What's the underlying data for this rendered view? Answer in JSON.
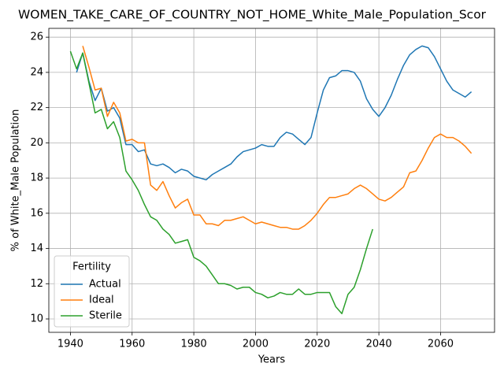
{
  "chart_data": {
    "type": "line",
    "title": "WOMEN_TAKE_CARE_OF_COUNTRY_NOT_HOME_White_Male_Population_Scor",
    "xlabel": "Years",
    "ylabel": "% of White_Male Population",
    "x": [
      1940,
      1942,
      1944,
      1946,
      1948,
      1950,
      1952,
      1954,
      1956,
      1958,
      1960,
      1962,
      1964,
      1966,
      1968,
      1970,
      1972,
      1974,
      1976,
      1978,
      1980,
      1982,
      1984,
      1986,
      1988,
      1990,
      1992,
      1994,
      1996,
      1998,
      2000,
      2002,
      2004,
      2006,
      2008,
      2010,
      2012,
      2014,
      2016,
      2018,
      2020,
      2022,
      2024,
      2026,
      2028,
      2030,
      2032,
      2034,
      2036,
      2038,
      2040,
      2042,
      2044,
      2046,
      2048,
      2050,
      2052,
      2054,
      2056,
      2058,
      2060,
      2062,
      2064,
      2066,
      2068,
      2070
    ],
    "series": [
      {
        "name": "Actual",
        "color": "#1f77b4",
        "values": [
          null,
          24.0,
          25.1,
          23.5,
          22.4,
          23.1,
          21.8,
          22.0,
          21.4,
          19.9,
          19.9,
          19.5,
          19.6,
          18.8,
          18.7,
          18.8,
          18.6,
          18.3,
          18.5,
          18.4,
          18.1,
          18.0,
          17.9,
          18.2,
          18.4,
          18.6,
          18.8,
          19.2,
          19.5,
          19.6,
          19.7,
          19.9,
          19.8,
          19.8,
          20.3,
          20.6,
          20.5,
          20.2,
          19.9,
          20.3,
          21.7,
          23.0,
          23.7,
          23.8,
          24.1,
          24.1,
          24.0,
          23.5,
          22.5,
          21.9,
          21.5,
          22.0,
          22.7,
          23.6,
          24.4,
          25.0,
          25.3,
          25.5,
          25.4,
          24.9,
          24.2,
          23.5,
          23.0,
          22.8,
          22.6,
          22.9
        ]
      },
      {
        "name": "Ideal",
        "color": "#ff7f0e",
        "values": [
          null,
          null,
          25.5,
          24.3,
          23.0,
          23.1,
          21.5,
          22.3,
          21.7,
          20.1,
          20.2,
          20.0,
          20.0,
          17.6,
          17.3,
          17.8,
          17.0,
          16.3,
          16.6,
          16.8,
          15.9,
          15.9,
          15.4,
          15.4,
          15.3,
          15.6,
          15.6,
          15.7,
          15.8,
          15.6,
          15.4,
          15.5,
          15.4,
          15.3,
          15.2,
          15.2,
          15.1,
          15.1,
          15.3,
          15.6,
          16.0,
          16.5,
          16.9,
          16.9,
          17.0,
          17.1,
          17.4,
          17.6,
          17.4,
          17.1,
          16.8,
          16.7,
          16.9,
          17.2,
          17.5,
          18.3,
          18.4,
          19.0,
          19.7,
          20.3,
          20.5,
          20.3,
          20.3,
          20.1,
          19.8,
          19.4
        ]
      },
      {
        "name": "Sterile",
        "color": "#2ca02c",
        "values": [
          25.2,
          24.2,
          25.1,
          23.4,
          21.7,
          21.9,
          20.8,
          21.2,
          20.3,
          18.4,
          17.9,
          17.3,
          16.5,
          15.8,
          15.6,
          15.1,
          14.8,
          14.3,
          14.4,
          14.5,
          13.5,
          13.3,
          13.0,
          12.5,
          12.0,
          12.0,
          11.9,
          11.7,
          11.8,
          11.8,
          11.5,
          11.4,
          11.2,
          11.3,
          11.5,
          11.4,
          11.4,
          11.7,
          11.4,
          11.4,
          11.5,
          11.5,
          11.5,
          10.7,
          10.3,
          11.4,
          11.8,
          12.8,
          14.0,
          15.1,
          null,
          null,
          null,
          null,
          null,
          null,
          null,
          null,
          null,
          null,
          null,
          null,
          null,
          null,
          null,
          null
        ]
      }
    ],
    "xlim": [
      1933,
      2077.5
    ],
    "xticks": [
      1940,
      1960,
      1980,
      2000,
      2020,
      2040,
      2060
    ],
    "ylim": [
      9.24,
      26.5
    ],
    "yticks": [
      10,
      12,
      14,
      16,
      18,
      20,
      22,
      24,
      26
    ],
    "grid": true,
    "legend_title": "Fertility",
    "legend_loc": "lower left"
  }
}
